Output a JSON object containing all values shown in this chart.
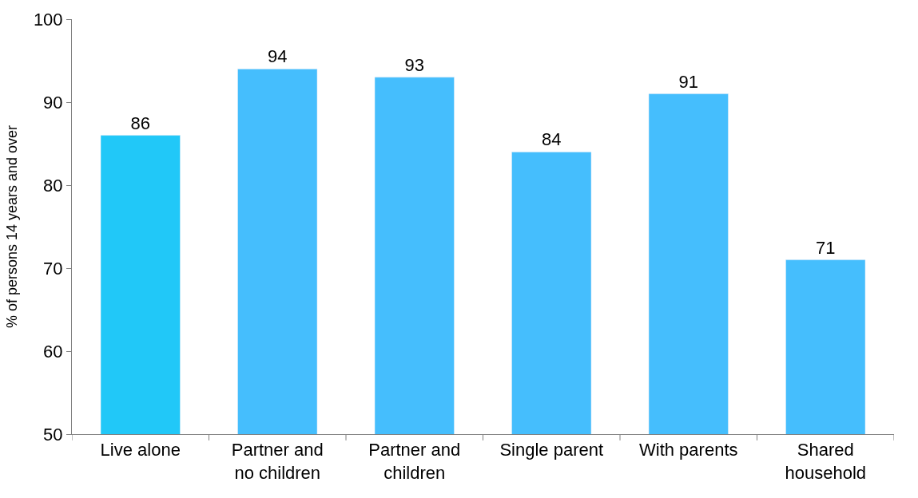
{
  "chart_data": {
    "type": "bar",
    "ylabel": "% of persons 14 years and over",
    "categories": [
      "Live alone",
      "Partner and\nno children",
      "Partner and\nchildren",
      "Single parent",
      "With parents",
      "Shared\nhousehold"
    ],
    "values": [
      86,
      94,
      93,
      84,
      91,
      71
    ],
    "colors": [
      "#21c8f8",
      "#45befd",
      "#45befd",
      "#45befd",
      "#45befd",
      "#45befd"
    ],
    "ylim": [
      50,
      100
    ],
    "yticks": [
      50,
      60,
      70,
      80,
      90,
      100
    ],
    "data_labels": true
  }
}
